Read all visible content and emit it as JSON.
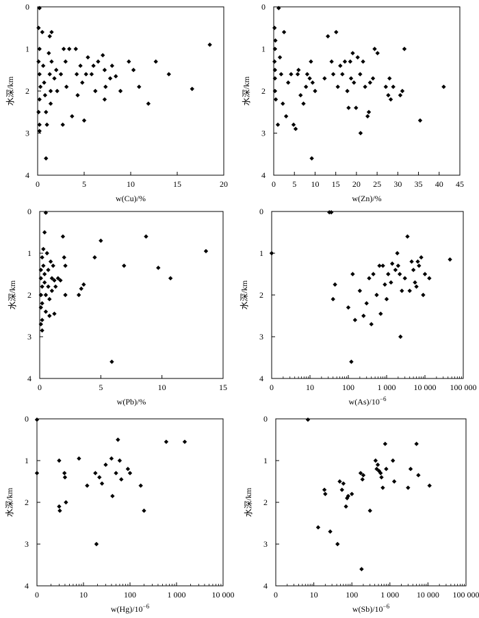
{
  "chart_data": [
    {
      "id": "cu",
      "type": "scatter",
      "xscale": "linear",
      "xlabel": "w(Cu)/%",
      "ylabel": "水深/km",
      "xlim": [
        0,
        20
      ],
      "ylim": [
        0,
        4
      ],
      "xticks": [
        0,
        5,
        10,
        15,
        20
      ],
      "xtick_labels": [
        "0",
        "5",
        "10",
        "15",
        "20"
      ],
      "yticks": [
        0,
        1,
        2,
        3,
        4
      ],
      "ytick_labels": [
        "0",
        "1",
        "2",
        "3",
        "4"
      ],
      "points": [
        [
          0.2,
          0.03
        ],
        [
          0.1,
          0.5
        ],
        [
          0.5,
          0.6
        ],
        [
          1.5,
          0.6
        ],
        [
          1.3,
          0.7
        ],
        [
          0.2,
          1.0
        ],
        [
          0.1,
          1.3
        ],
        [
          0.2,
          1.6
        ],
        [
          0.3,
          1.9
        ],
        [
          0.2,
          2.2
        ],
        [
          0.1,
          2.5
        ],
        [
          0.2,
          2.8
        ],
        [
          0.2,
          2.95
        ],
        [
          0.6,
          1.4
        ],
        [
          0.7,
          1.8
        ],
        [
          0.8,
          2.1
        ],
        [
          0.9,
          2.5
        ],
        [
          1.0,
          2.8
        ],
        [
          0.9,
          3.6
        ],
        [
          1.2,
          1.1
        ],
        [
          1.3,
          1.6
        ],
        [
          1.4,
          2.0
        ],
        [
          1.4,
          2.3
        ],
        [
          1.5,
          1.3
        ],
        [
          1.8,
          1.7
        ],
        [
          2.0,
          1.5
        ],
        [
          2.1,
          2.0
        ],
        [
          2.5,
          1.6
        ],
        [
          2.7,
          2.8
        ],
        [
          2.8,
          1.0
        ],
        [
          3.0,
          1.3
        ],
        [
          3.1,
          1.9
        ],
        [
          3.4,
          1.0
        ],
        [
          3.7,
          2.6
        ],
        [
          4.1,
          1.0
        ],
        [
          4.2,
          1.6
        ],
        [
          4.3,
          2.1
        ],
        [
          4.6,
          1.4
        ],
        [
          4.8,
          1.8
        ],
        [
          5.0,
          2.7
        ],
        [
          5.2,
          1.6
        ],
        [
          5.4,
          1.2
        ],
        [
          5.8,
          1.6
        ],
        [
          6.0,
          1.4
        ],
        [
          6.2,
          2.0
        ],
        [
          6.5,
          1.3
        ],
        [
          7.0,
          1.15
        ],
        [
          7.2,
          1.5
        ],
        [
          7.2,
          2.2
        ],
        [
          7.3,
          1.9
        ],
        [
          7.8,
          1.7
        ],
        [
          8.0,
          1.4
        ],
        [
          8.4,
          1.65
        ],
        [
          8.9,
          2.0
        ],
        [
          9.8,
          1.3
        ],
        [
          10.3,
          1.5
        ],
        [
          10.9,
          1.9
        ],
        [
          11.9,
          2.3
        ],
        [
          12.7,
          1.3
        ],
        [
          14.1,
          1.6
        ],
        [
          16.6,
          1.95
        ],
        [
          18.5,
          0.9
        ]
      ]
    },
    {
      "id": "zn",
      "type": "scatter",
      "xscale": "linear",
      "xlabel": "w(Zn)/%",
      "ylabel": "水深/km",
      "xlim": [
        0,
        45
      ],
      "ylim": [
        0,
        4
      ],
      "xticks": [
        0,
        5,
        10,
        15,
        20,
        25,
        30,
        35,
        40,
        45
      ],
      "xtick_labels": [
        "0",
        "5",
        "10",
        "15",
        "20",
        "25",
        "30",
        "35",
        "40",
        "45"
      ],
      "yticks": [
        0,
        1,
        2,
        3,
        4
      ],
      "ytick_labels": [
        "0",
        "1",
        "2",
        "3",
        "4"
      ],
      "points": [
        [
          1.2,
          0.03
        ],
        [
          0.2,
          0.5
        ],
        [
          0.4,
          0.8
        ],
        [
          0.3,
          1.0
        ],
        [
          0.2,
          1.3
        ],
        [
          0.3,
          1.5
        ],
        [
          0.3,
          1.7
        ],
        [
          0.3,
          2.0
        ],
        [
          0.5,
          2.2
        ],
        [
          1.0,
          2.8
        ],
        [
          1.5,
          1.2
        ],
        [
          1.8,
          1.6
        ],
        [
          2.2,
          2.3
        ],
        [
          2.5,
          0.6
        ],
        [
          3.0,
          2.6
        ],
        [
          3.5,
          1.8
        ],
        [
          4.2,
          1.6
        ],
        [
          4.8,
          2.8
        ],
        [
          5.3,
          2.9
        ],
        [
          5.8,
          1.6
        ],
        [
          6.0,
          1.5
        ],
        [
          6.5,
          2.1
        ],
        [
          7.2,
          2.3
        ],
        [
          7.8,
          1.9
        ],
        [
          8.1,
          1.6
        ],
        [
          8.7,
          1.7
        ],
        [
          9.0,
          1.3
        ],
        [
          9.4,
          1.8
        ],
        [
          10.0,
          2.0
        ],
        [
          9.2,
          3.6
        ],
        [
          12.3,
          1.7
        ],
        [
          13.1,
          0.7
        ],
        [
          14.0,
          1.3
        ],
        [
          14.4,
          1.6
        ],
        [
          15.1,
          0.6
        ],
        [
          15.5,
          1.9
        ],
        [
          16.1,
          1.4
        ],
        [
          16.6,
          1.6
        ],
        [
          17.2,
          1.3
        ],
        [
          17.8,
          2.0
        ],
        [
          18.1,
          2.4
        ],
        [
          18.5,
          1.3
        ],
        [
          18.7,
          1.7
        ],
        [
          19.1,
          1.1
        ],
        [
          19.4,
          1.8
        ],
        [
          19.9,
          2.4
        ],
        [
          20.3,
          1.2
        ],
        [
          20.9,
          1.6
        ],
        [
          21.0,
          3.0
        ],
        [
          21.6,
          1.3
        ],
        [
          22.1,
          1.9
        ],
        [
          22.7,
          2.6
        ],
        [
          23.0,
          2.5
        ],
        [
          23.3,
          1.8
        ],
        [
          24.0,
          1.7
        ],
        [
          24.4,
          1.0
        ],
        [
          25.1,
          1.1
        ],
        [
          27.1,
          1.9
        ],
        [
          27.7,
          2.1
        ],
        [
          28.0,
          1.7
        ],
        [
          28.3,
          2.2
        ],
        [
          28.9,
          1.9
        ],
        [
          30.6,
          2.1
        ],
        [
          31.1,
          2.0
        ],
        [
          31.6,
          1.0
        ],
        [
          35.4,
          2.7
        ],
        [
          41.1,
          1.9
        ]
      ]
    },
    {
      "id": "pb",
      "type": "scatter",
      "xscale": "linear",
      "xlabel": "w(Pb)/%",
      "ylabel": "水深/km",
      "xlim": [
        0,
        15
      ],
      "ylim": [
        0,
        4
      ],
      "xticks": [
        0,
        5,
        10,
        15
      ],
      "xtick_labels": [
        "0",
        "5",
        "10",
        "15"
      ],
      "yticks": [
        0,
        1,
        2,
        3,
        4
      ],
      "ytick_labels": [
        "0",
        "1",
        "2",
        "3",
        "4"
      ],
      "points": [
        [
          0.5,
          0.03
        ],
        [
          0.4,
          0.5
        ],
        [
          0.3,
          0.9
        ],
        [
          0.2,
          1.1
        ],
        [
          0.1,
          1.4
        ],
        [
          0.1,
          1.6
        ],
        [
          0.2,
          1.8
        ],
        [
          0.1,
          2.0
        ],
        [
          0.2,
          2.2
        ],
        [
          0.1,
          2.3
        ],
        [
          0.2,
          2.6
        ],
        [
          0.1,
          2.7
        ],
        [
          0.2,
          2.85
        ],
        [
          0.3,
          1.3
        ],
        [
          0.4,
          1.5
        ],
        [
          0.4,
          1.7
        ],
        [
          0.5,
          2.0
        ],
        [
          0.5,
          2.4
        ],
        [
          0.6,
          1.0
        ],
        [
          0.7,
          1.4
        ],
        [
          0.7,
          1.8
        ],
        [
          0.8,
          2.1
        ],
        [
          0.8,
          2.5
        ],
        [
          0.9,
          1.2
        ],
        [
          1.0,
          1.6
        ],
        [
          1.0,
          1.9
        ],
        [
          1.1,
          1.3
        ],
        [
          1.2,
          1.65
        ],
        [
          1.2,
          2.45
        ],
        [
          1.3,
          1.8
        ],
        [
          1.5,
          1.6
        ],
        [
          1.7,
          1.65
        ],
        [
          1.9,
          0.6
        ],
        [
          2.0,
          1.1
        ],
        [
          2.1,
          1.3
        ],
        [
          2.1,
          2.0
        ],
        [
          3.2,
          2.0
        ],
        [
          3.4,
          1.85
        ],
        [
          3.6,
          1.75
        ],
        [
          4.5,
          1.1
        ],
        [
          5.0,
          0.7
        ],
        [
          5.9,
          3.6
        ],
        [
          6.9,
          1.3
        ],
        [
          8.7,
          0.6
        ],
        [
          9.7,
          1.35
        ],
        [
          10.7,
          1.6
        ],
        [
          13.6,
          0.95
        ]
      ]
    },
    {
      "id": "as",
      "type": "scatter",
      "xscale": "log",
      "xlabel": "w(As)/10⁻⁶",
      "ylabel": "水深/km",
      "xlim": [
        1,
        100000
      ],
      "ylim": [
        0,
        4
      ],
      "xticks": [
        1,
        10,
        100,
        1000,
        10000,
        100000
      ],
      "xtick_labels": [
        "0",
        "10",
        "100",
        "1 000",
        "10 000",
        "100 000"
      ],
      "yticks": [
        0,
        1,
        2,
        3,
        4
      ],
      "ytick_labels": [
        "0",
        "1",
        "2",
        "3",
        "4"
      ],
      "points": [
        [
          1.0,
          1.0
        ],
        [
          32,
          0.02
        ],
        [
          36,
          0.02
        ],
        [
          40,
          2.1
        ],
        [
          45,
          1.75
        ],
        [
          100,
          2.3
        ],
        [
          120,
          3.6
        ],
        [
          130,
          1.5
        ],
        [
          150,
          2.6
        ],
        [
          200,
          1.9
        ],
        [
          250,
          2.5
        ],
        [
          300,
          2.2
        ],
        [
          350,
          1.6
        ],
        [
          400,
          2.7
        ],
        [
          450,
          1.5
        ],
        [
          550,
          2.0
        ],
        [
          650,
          1.3
        ],
        [
          700,
          2.45
        ],
        [
          800,
          1.3
        ],
        [
          900,
          1.75
        ],
        [
          1000,
          2.1
        ],
        [
          1100,
          1.5
        ],
        [
          1300,
          1.7
        ],
        [
          1400,
          1.25
        ],
        [
          1700,
          1.4
        ],
        [
          1900,
          1.0
        ],
        [
          2000,
          1.3
        ],
        [
          2200,
          1.5
        ],
        [
          2300,
          3.0
        ],
        [
          2500,
          1.9
        ],
        [
          3000,
          1.6
        ],
        [
          3500,
          0.6
        ],
        [
          4000,
          1.9
        ],
        [
          4500,
          1.2
        ],
        [
          5000,
          1.4
        ],
        [
          5500,
          1.7
        ],
        [
          6000,
          1.8
        ],
        [
          6500,
          1.2
        ],
        [
          7000,
          1.3
        ],
        [
          8000,
          1.1
        ],
        [
          9000,
          2.0
        ],
        [
          10000,
          1.5
        ],
        [
          13000,
          1.6
        ],
        [
          45000,
          1.15
        ]
      ]
    },
    {
      "id": "hg",
      "type": "scatter",
      "xscale": "log",
      "xlabel": "w(Hg)/10⁻⁶",
      "ylabel": "水深/km",
      "xlim": [
        1,
        10000
      ],
      "ylim": [
        0,
        4
      ],
      "xticks": [
        1,
        10,
        100,
        1000,
        10000
      ],
      "xtick_labels": [
        "0",
        "10",
        "100",
        "1 000",
        "10 000"
      ],
      "yticks": [
        0,
        1,
        2,
        3,
        4
      ],
      "ytick_labels": [
        "0",
        "1",
        "2",
        "3",
        "4"
      ],
      "points": [
        [
          1.0,
          0.02
        ],
        [
          1.0,
          1.3
        ],
        [
          3.0,
          1.0
        ],
        [
          3.0,
          2.1
        ],
        [
          3.1,
          2.2
        ],
        [
          3.9,
          1.3
        ],
        [
          4.0,
          1.4
        ],
        [
          4.2,
          2.0
        ],
        [
          8.0,
          0.95
        ],
        [
          12,
          1.6
        ],
        [
          18,
          1.3
        ],
        [
          19,
          3.0
        ],
        [
          22,
          1.4
        ],
        [
          25,
          1.55
        ],
        [
          30,
          1.1
        ],
        [
          40,
          0.95
        ],
        [
          42,
          1.85
        ],
        [
          50,
          1.3
        ],
        [
          55,
          0.5
        ],
        [
          60,
          1.0
        ],
        [
          65,
          1.45
        ],
        [
          90,
          1.2
        ],
        [
          100,
          1.3
        ],
        [
          170,
          1.6
        ],
        [
          200,
          2.2
        ],
        [
          600,
          0.55
        ],
        [
          1500,
          0.55
        ]
      ]
    },
    {
      "id": "sb",
      "type": "scatter",
      "xscale": "log",
      "xlabel": "w(Sb)/10⁻⁶",
      "ylabel": "水深/km",
      "xlim": [
        1,
        100000
      ],
      "ylim": [
        0,
        4
      ],
      "xticks": [
        1,
        10,
        100,
        1000,
        10000,
        100000
      ],
      "xtick_labels": [
        "0",
        "10",
        "100",
        "1 000",
        "10 000",
        "100 000"
      ],
      "yticks": [
        0,
        1,
        2,
        3,
        4
      ],
      "ytick_labels": [
        "0",
        "1",
        "2",
        "3",
        "4"
      ],
      "points": [
        [
          7,
          0.02
        ],
        [
          13,
          2.6
        ],
        [
          19,
          1.7
        ],
        [
          20,
          1.8
        ],
        [
          27,
          2.7
        ],
        [
          42,
          3.0
        ],
        [
          48,
          1.5
        ],
        [
          55,
          1.7
        ],
        [
          60,
          1.55
        ],
        [
          70,
          2.1
        ],
        [
          75,
          1.9
        ],
        [
          80,
          1.85
        ],
        [
          100,
          1.8
        ],
        [
          170,
          1.3
        ],
        [
          180,
          3.6
        ],
        [
          190,
          1.45
        ],
        [
          200,
          1.35
        ],
        [
          300,
          2.2
        ],
        [
          420,
          1.0
        ],
        [
          450,
          1.2
        ],
        [
          480,
          1.1
        ],
        [
          520,
          1.25
        ],
        [
          570,
          1.3
        ],
        [
          600,
          1.4
        ],
        [
          650,
          1.65
        ],
        [
          750,
          0.6
        ],
        [
          800,
          1.2
        ],
        [
          1200,
          1.0
        ],
        [
          1300,
          1.5
        ],
        [
          3000,
          1.65
        ],
        [
          3500,
          1.2
        ],
        [
          5000,
          0.6
        ],
        [
          5600,
          1.35
        ],
        [
          11000,
          1.6
        ]
      ]
    }
  ]
}
